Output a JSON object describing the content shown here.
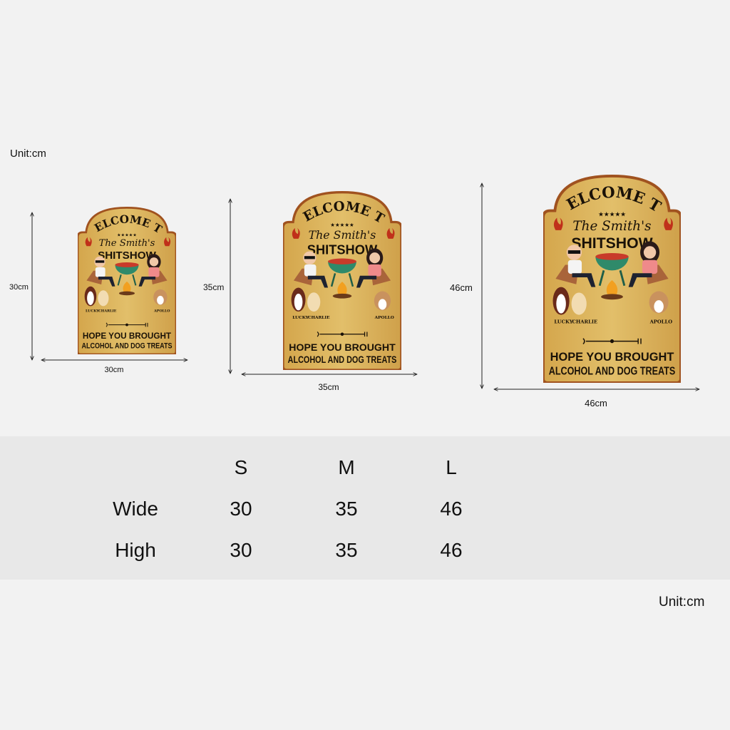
{
  "unit_top": "Unit:cm",
  "unit_bottom": "Unit:cm",
  "sign": {
    "line1": "WELCOME TO",
    "line2": "The Smith's",
    "line3": "SHITSHOW",
    "dog_names": [
      "LUCKY",
      "CHARLIE",
      "APOLLO"
    ],
    "footer1": "HOPE YOU BROUGHT",
    "footer2": "ALCOHOL AND DOG TREATS"
  },
  "sizes": [
    {
      "size": "S",
      "width_label": "30cm",
      "height_label": "30cm"
    },
    {
      "size": "M",
      "width_label": "35cm",
      "height_label": "35cm"
    },
    {
      "size": "L",
      "width_label": "46cm",
      "height_label": "46cm"
    }
  ],
  "table": {
    "headers": [
      "S",
      "M",
      "L"
    ],
    "rows": [
      {
        "label": "Wide",
        "values": [
          "30",
          "35",
          "46"
        ]
      },
      {
        "label": "High",
        "values": [
          "30",
          "35",
          "46"
        ]
      }
    ]
  },
  "colors": {
    "background": "#f2f2f2",
    "table_band": "#e8e8e8",
    "wood": "#d9b25a",
    "border": "#a0521f"
  }
}
